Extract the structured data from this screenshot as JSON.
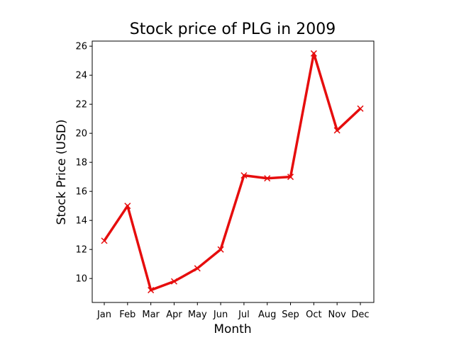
{
  "chart_data": {
    "type": "line",
    "title": "Stock price of PLG in 2009",
    "xlabel": "Month",
    "ylabel": "Stock Price (USD)",
    "categories": [
      "Jan",
      "Feb",
      "Mar",
      "Apr",
      "May",
      "Jun",
      "Jul",
      "Aug",
      "Sep",
      "Oct",
      "Nov",
      "Dec"
    ],
    "series": [
      {
        "values": [
          12.6,
          15.0,
          9.2,
          9.8,
          10.7,
          12.0,
          17.1,
          16.9,
          17.0,
          25.5,
          20.2,
          21.7
        ]
      }
    ],
    "ylim": [
      8.35,
      26.35
    ],
    "yticks": [
      10,
      12,
      14,
      16,
      18,
      20,
      22,
      24,
      26
    ],
    "grid": false,
    "legend": "none",
    "colors": {
      "line": "#e60d0d",
      "marker": "#e60d0d",
      "axes": "#000000"
    },
    "marker": "x"
  }
}
